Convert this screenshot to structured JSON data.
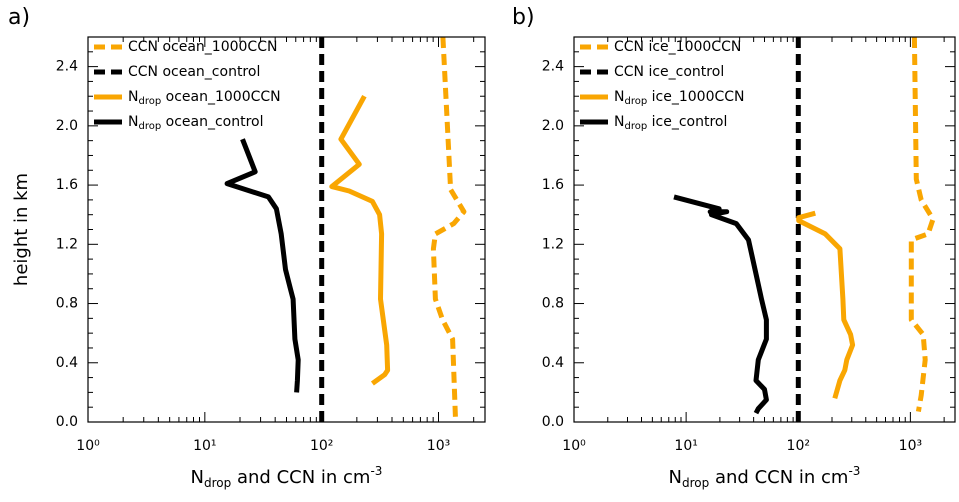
{
  "chart_data": [
    {
      "type": "line",
      "panel_label": "a)",
      "ylabel": "height in km",
      "xlabel": [
        "N",
        "drop",
        " and CCN in cm",
        "-3"
      ],
      "log_x": true,
      "legend": "upper left",
      "xlim": [
        1,
        2500
      ],
      "ylim": [
        0,
        2.6
      ],
      "xticks": [
        {
          "value": 1,
          "label": "10⁰"
        },
        {
          "value": 10,
          "label": "10¹"
        },
        {
          "value": 100,
          "label": "10²"
        },
        {
          "value": 1000,
          "label": "10³"
        }
      ],
      "yticks": [
        {
          "value": 0,
          "label": "0.0"
        },
        0.4,
        0.8,
        1.2,
        1.6,
        {
          "value": 2,
          "label": "2.0"
        },
        2.4
      ],
      "series": [
        {
          "name": "CCN ocean_1000CCN",
          "color": "#f9a602",
          "style": "dashed",
          "x": [
            1090,
            1220,
            1270,
            1650,
            1350,
            940,
            905,
            940,
            1085,
            1320,
            1400
          ],
          "y": [
            2.6,
            1.84,
            1.57,
            1.42,
            1.34,
            1.27,
            1.17,
            0.83,
            0.69,
            0.56,
            0
          ]
        },
        {
          "name": "CCN ocean_control",
          "color": "#000000",
          "style": "dashed",
          "x": [
            100,
            100
          ],
          "y": [
            0,
            2.6
          ]
        },
        {
          "name": [
            "N",
            "drop",
            " ocean_1000CCN"
          ],
          "color": "#f9a602",
          "style": "solid",
          "x": [
            232,
            146,
            210,
            122,
            172,
            272,
            313,
            326,
            319,
            360,
            367,
            346,
            272
          ],
          "y": [
            2.2,
            1.91,
            1.74,
            1.59,
            1.56,
            1.49,
            1.4,
            1.27,
            0.83,
            0.52,
            0.35,
            0.32,
            0.26
          ]
        },
        {
          "name": [
            "N",
            "drop",
            " ocean_control"
          ],
          "color": "#000000",
          "style": "solid",
          "x": [
            21,
            27,
            15.5,
            35,
            41,
            45,
            49,
            54,
            57,
            59,
            63,
            62,
            61
          ],
          "y": [
            1.91,
            1.69,
            1.61,
            1.52,
            1.44,
            1.27,
            1.03,
            0.9,
            0.83,
            0.56,
            0.42,
            0.28,
            0.2
          ]
        }
      ]
    },
    {
      "type": "line",
      "panel_label": "b)",
      "xlabel": [
        "N",
        "drop",
        " and CCN in cm",
        "-3"
      ],
      "log_x": true,
      "legend": "upper left",
      "xlim": [
        1,
        2500
      ],
      "ylim": [
        0,
        2.6
      ],
      "xticks": [
        {
          "value": 1,
          "label": "10⁰"
        },
        {
          "value": 10,
          "label": "10¹"
        },
        {
          "value": 100,
          "label": "10²"
        },
        {
          "value": 1000,
          "label": "10³"
        }
      ],
      "yticks": [
        {
          "value": 0,
          "label": "0.0"
        },
        0.4,
        0.8,
        1.2,
        1.6,
        {
          "value": 2,
          "label": "2.0"
        },
        2.4
      ],
      "series": [
        {
          "name": "CCN ice_1000CCN",
          "color": "#f9a602",
          "style": "dashed",
          "x": [
            1086,
            1130,
            1250,
            1590,
            1440,
            1020,
            1020,
            1300,
            1356,
            1250,
            1180
          ],
          "y": [
            2.6,
            1.64,
            1.5,
            1.37,
            1.27,
            1.23,
            0.69,
            0.59,
            0.42,
            0.18,
            0.07
          ]
        },
        {
          "name": "CCN ice_control",
          "color": "#000000",
          "style": "dashed",
          "x": [
            100,
            100
          ],
          "y": [
            0,
            2.6
          ]
        },
        {
          "name": [
            "N",
            "drop",
            " ice_1000CCN"
          ],
          "color": "#f9a602",
          "style": "solid",
          "x": [
            142,
            101,
            101,
            174,
            235,
            250,
            255,
            293,
            305,
            271,
            260,
            235,
            212
          ],
          "y": [
            1.41,
            1.38,
            1.36,
            1.27,
            1.17,
            0.83,
            0.69,
            0.59,
            0.52,
            0.42,
            0.35,
            0.28,
            0.16
          ]
        },
        {
          "name": [
            "N",
            "drop",
            " ice_control"
          ],
          "color": "#000000",
          "style": "solid",
          "x": [
            7.8,
            19.7,
            16.4,
            23,
            16.8,
            28,
            36,
            42,
            47,
            52,
            52,
            44,
            42,
            50,
            52,
            44,
            42
          ],
          "y": [
            1.52,
            1.44,
            1.42,
            1.42,
            1.4,
            1.34,
            1.23,
            1.0,
            0.83,
            0.69,
            0.56,
            0.42,
            0.28,
            0.22,
            0.15,
            0.09,
            0.06
          ]
        }
      ]
    }
  ]
}
